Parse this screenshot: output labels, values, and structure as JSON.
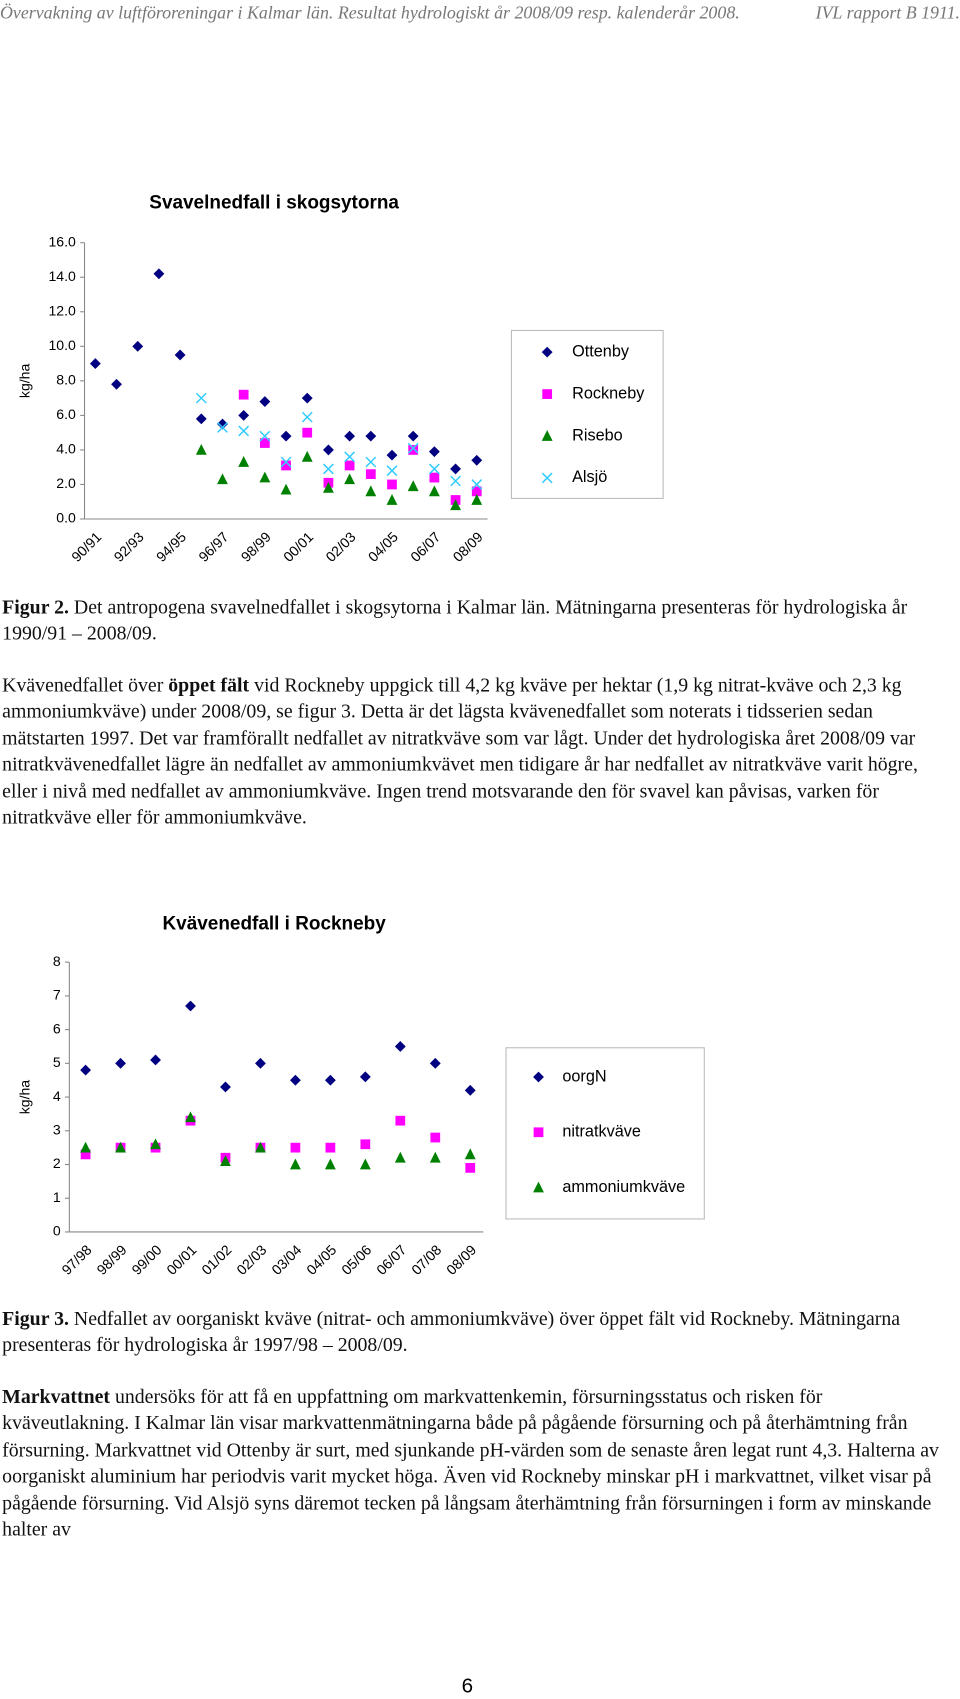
{
  "header": {
    "left": "Övervakning av luftföroreningar i Kalmar län. Resultat hydrologiskt år 2008/09 resp. kalenderår 2008.",
    "right": "IVL rapport B 1911."
  },
  "chart_data": [
    {
      "type": "scatter",
      "title": "Svavelnedfall i skogsytorna",
      "y_label": "kg/ha",
      "categories": [
        "90/91",
        null,
        "92/93",
        null,
        "94/95",
        null,
        "96/97",
        null,
        "98/99",
        null,
        "00/01",
        null,
        "02/03",
        null,
        "04/05",
        null,
        "06/07",
        null,
        "08/09"
      ],
      "ylim": [
        0,
        16
      ],
      "yticks": [
        {
          "value": 0,
          "label": "0.0"
        },
        {
          "value": 2,
          "label": "2.0"
        },
        {
          "value": 4,
          "label": "4.0"
        },
        {
          "value": 6,
          "label": "6.0"
        },
        {
          "value": 8,
          "label": "8.0"
        },
        {
          "value": 10,
          "label": "10.0"
        },
        {
          "value": 12,
          "label": "12.0"
        },
        {
          "value": 14,
          "label": "14.0"
        },
        {
          "value": 16,
          "label": "16.0"
        }
      ],
      "legend": "right",
      "series": [
        {
          "name": "Ottenby",
          "color": "#000080",
          "marker": "diamond",
          "values": [
            9.0,
            7.8,
            10.0,
            14.2,
            9.5,
            5.8,
            5.5,
            6.0,
            6.8,
            4.8,
            7.0,
            4.0,
            4.8,
            4.8,
            3.7,
            4.8,
            3.9,
            2.9,
            3.4
          ]
        },
        {
          "name": "Rockneby",
          "color": "#ff00ff",
          "marker": "square",
          "values": [
            null,
            null,
            null,
            null,
            null,
            null,
            null,
            7.2,
            4.4,
            3.1,
            5.0,
            2.1,
            3.1,
            2.6,
            2.0,
            4.0,
            2.4,
            1.1,
            1.6
          ]
        },
        {
          "name": "Risebo",
          "color": "#008000",
          "marker": "triangle",
          "values": [
            null,
            null,
            null,
            null,
            null,
            4.0,
            2.3,
            3.3,
            2.4,
            1.7,
            3.6,
            1.8,
            2.3,
            1.6,
            1.1,
            1.9,
            1.6,
            0.8,
            1.1
          ]
        },
        {
          "name": "Alsjö",
          "color": "#33ccff",
          "marker": "x",
          "values": [
            null,
            null,
            null,
            null,
            null,
            7.0,
            5.3,
            5.1,
            4.8,
            3.3,
            5.9,
            2.9,
            3.6,
            3.3,
            2.8,
            4.1,
            2.9,
            2.2,
            2.0
          ]
        }
      ]
    },
    {
      "type": "scatter",
      "title": "Kvävenedfall i Rockneby",
      "y_label": "kg/ha",
      "categories": [
        "97/98",
        "98/99",
        "99/00",
        "00/01",
        "01/02",
        "02/03",
        "03/04",
        "04/05",
        "05/06",
        "06/07",
        "07/08",
        "08/09"
      ],
      "ylim": [
        0,
        8
      ],
      "yticks": [
        0,
        1,
        2,
        3,
        4,
        5,
        6,
        7,
        8
      ],
      "legend": "right",
      "series": [
        {
          "name": "oorgN",
          "color": "#000080",
          "marker": "diamond",
          "values": [
            4.8,
            5.0,
            5.1,
            6.7,
            4.3,
            5.0,
            4.5,
            4.5,
            4.6,
            5.5,
            5.0,
            4.2
          ]
        },
        {
          "name": "nitratkväve",
          "color": "#ff00ff",
          "marker": "square",
          "values": [
            2.3,
            2.5,
            2.5,
            3.3,
            2.2,
            2.5,
            2.5,
            2.5,
            2.6,
            3.3,
            2.8,
            1.9
          ]
        },
        {
          "name": "ammoniumkväve",
          "color": "#008000",
          "marker": "triangle",
          "values": [
            2.5,
            2.5,
            2.6,
            3.4,
            2.1,
            2.5,
            2.0,
            2.0,
            2.0,
            2.2,
            2.2,
            2.3
          ]
        }
      ]
    }
  ],
  "text_blocks": [
    {
      "runs": [
        {
          "text": "Figur 2.",
          "bold": true
        },
        {
          "text": " Det antropogena svavelnedfallet i skogsytorna i Kalmar län. Mätningarna presenteras för hydrologiska år 1990/91 – 2008/09.",
          "bold": false
        }
      ]
    },
    {
      "runs": [
        {
          "text": "Kvävenedfallet över ",
          "bold": false
        },
        {
          "text": "öppet fält",
          "bold": true
        },
        {
          "text": " vid Rockneby uppgick till 4,2 kg kväve per hektar (1,9 kg nitrat-kväve och 2,3 kg ammoniumkväve) under 2008/09, se figur 3. Detta är det lägsta kvävenedfallet som noterats i tidsserien sedan mätstarten 1997. Det var framförallt nedfallet av nitratkväve som var lågt. Under det hydrologiska året 2008/09 var nitratkvävenedfallet lägre än nedfallet av ammoniumkvävet men tidigare år har nedfallet av nitratkväve varit högre, eller i nivå med nedfallet av ammoniumkväve. Ingen trend motsvarande den för svavel kan påvisas, varken för nitratkväve eller för ammoniumkväve.",
          "bold": false
        }
      ]
    },
    {
      "runs": [
        {
          "text": "Figur 3.",
          "bold": true
        },
        {
          "text": " Nedfallet av oorganiskt kväve (nitrat- och ammoniumkväve) över öppet fält vid Rockneby. Mätningarna presenteras för hydrologiska år 1997/98 – 2008/09.",
          "bold": false
        }
      ]
    },
    {
      "runs": [
        {
          "text": "Markvattnet",
          "bold": true
        },
        {
          "text": " undersöks för att få en uppfattning om markvattenkemin, försurningsstatus och risken för kväveutlakning. I Kalmar län visar markvattenmätningarna både på pågående försurning och på återhämtning från försurning. Markvattnet vid Ottenby är surt, med sjunkande pH-värden som de senaste åren legat runt 4,3. Halterna av oorganiskt aluminium har periodvis varit mycket höga. Även vid Rockneby minskar pH i markvattnet, vilket visar på pågående försurning. Vid Alsjö syns däremot tecken på långsam återhämtning från försurningen i form av minskande halter av",
          "bold": false
        }
      ]
    }
  ],
  "page_number": "6"
}
